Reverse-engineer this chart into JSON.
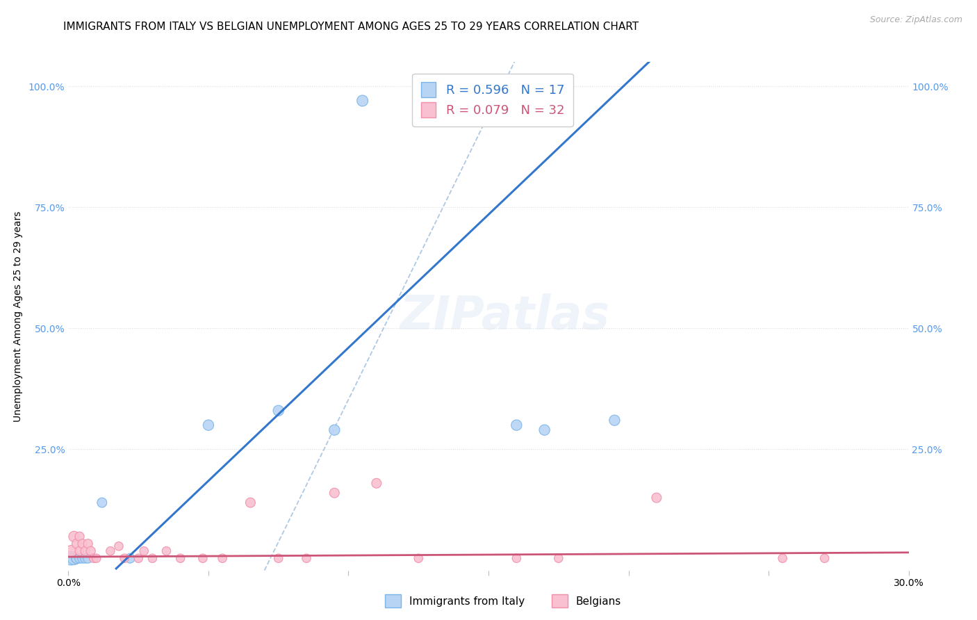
{
  "title": "IMMIGRANTS FROM ITALY VS BELGIAN UNEMPLOYMENT AMONG AGES 25 TO 29 YEARS CORRELATION CHART",
  "source": "Source: ZipAtlas.com",
  "ylabel": "Unemployment Among Ages 25 to 29 years",
  "xlim": [
    0.0,
    0.3
  ],
  "ylim": [
    0.0,
    1.05
  ],
  "xticks": [
    0.0,
    0.05,
    0.1,
    0.15,
    0.2,
    0.25,
    0.3
  ],
  "xticklabels": [
    "0.0%",
    "",
    "",
    "",
    "",
    "",
    "30.0%"
  ],
  "yticks": [
    0.0,
    0.25,
    0.5,
    0.75,
    1.0
  ],
  "yticklabels": [
    "",
    "25.0%",
    "50.0%",
    "75.0%",
    "100.0%"
  ],
  "italy_color": "#7ab4e8",
  "italian_fill": "#b8d4f4",
  "belgian_color": "#f090a8",
  "belgian_fill": "#f8c0d0",
  "regression_italy": "#3377cc",
  "regression_belgian": "#cc5577",
  "diagonal_color": "#99bbdd",
  "grid_color": "#dddddd",
  "bg_color": "#ffffff",
  "tick_color_y": "#5599ee",
  "italy_x": [
    0.001,
    0.002,
    0.003,
    0.003,
    0.004,
    0.005,
    0.006,
    0.007,
    0.012,
    0.022,
    0.05,
    0.075,
    0.095,
    0.16,
    0.17,
    0.195,
    0.105
  ],
  "italy_y": [
    0.025,
    0.025,
    0.025,
    0.025,
    0.025,
    0.025,
    0.025,
    0.025,
    0.14,
    0.025,
    0.3,
    0.33,
    0.29,
    0.3,
    0.29,
    0.31,
    0.97
  ],
  "italian_sizes": [
    200,
    180,
    120,
    120,
    100,
    100,
    100,
    100,
    100,
    100,
    120,
    120,
    120,
    120,
    120,
    120,
    130
  ],
  "belgian_x": [
    0.001,
    0.002,
    0.003,
    0.004,
    0.004,
    0.005,
    0.006,
    0.007,
    0.008,
    0.009,
    0.01,
    0.015,
    0.018,
    0.02,
    0.025,
    0.027,
    0.03,
    0.035,
    0.04,
    0.048,
    0.055,
    0.065,
    0.075,
    0.085,
    0.095,
    0.11,
    0.125,
    0.16,
    0.175,
    0.21,
    0.255,
    0.27
  ],
  "belgian_y": [
    0.04,
    0.07,
    0.055,
    0.04,
    0.07,
    0.055,
    0.04,
    0.055,
    0.04,
    0.025,
    0.025,
    0.04,
    0.05,
    0.025,
    0.025,
    0.04,
    0.025,
    0.04,
    0.025,
    0.025,
    0.025,
    0.14,
    0.025,
    0.025,
    0.16,
    0.18,
    0.025,
    0.025,
    0.025,
    0.15,
    0.025,
    0.025
  ],
  "belgian_sizes": [
    140,
    120,
    100,
    90,
    90,
    90,
    90,
    90,
    90,
    80,
    80,
    80,
    80,
    80,
    80,
    80,
    80,
    80,
    80,
    80,
    80,
    100,
    80,
    80,
    100,
    100,
    80,
    80,
    80,
    100,
    80,
    80
  ],
  "legend_italy_label": "R = 0.596   N = 17",
  "legend_belgian_label": "R = 0.079   N = 32",
  "legend_color_italy": "#3377cc",
  "legend_color_belgian": "#cc5577",
  "bottom_legend_labels": [
    "Immigrants from Italy",
    "Belgians"
  ]
}
